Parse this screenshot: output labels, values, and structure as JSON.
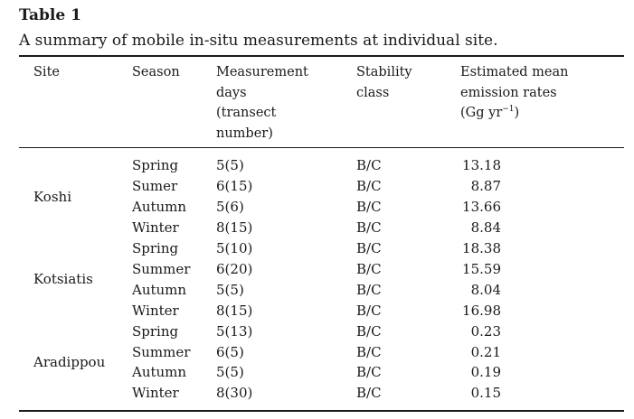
{
  "table_label": "Table 1",
  "caption": "A summary of mobile in-situ measurements at individual site.",
  "headers": {
    "site": "Site",
    "season": "Season",
    "days": "Measurement\ndays\n(transect\nnumber)",
    "stability": "Stability\nclass",
    "emission_main": "Estimated mean\nemission rates\n(Gg yr",
    "emission_sup": "−1",
    "emission_tail": ")"
  },
  "sites": [
    "Koshi",
    "Kotsiatis",
    "Aradippou"
  ],
  "rows": [
    {
      "season": "Spring",
      "days": "5(5)",
      "stability": "B/C",
      "emission": "13.18"
    },
    {
      "season": "Sumer",
      "days": "6(15)",
      "stability": "B/C",
      "emission": "8.87"
    },
    {
      "season": "Autumn",
      "days": "5(6)",
      "stability": "B/C",
      "emission": "13.66"
    },
    {
      "season": "Winter",
      "days": "8(15)",
      "stability": "B/C",
      "emission": "8.84"
    },
    {
      "season": "Spring",
      "days": "5(10)",
      "stability": "B/C",
      "emission": "18.38"
    },
    {
      "season": "Summer",
      "days": "6(20)",
      "stability": "B/C",
      "emission": "15.59"
    },
    {
      "season": "Autumn",
      "days": "5(5)",
      "stability": "B/C",
      "emission": "8.04"
    },
    {
      "season": "Winter",
      "days": "8(15)",
      "stability": "B/C",
      "emission": "16.98"
    },
    {
      "season": "Spring",
      "days": "5(13)",
      "stability": "B/C",
      "emission": "0.23"
    },
    {
      "season": "Summer",
      "days": "6(5)",
      "stability": "B/C",
      "emission": "0.21"
    },
    {
      "season": "Autumn",
      "days": "5(5)",
      "stability": "B/C",
      "emission": "0.19"
    },
    {
      "season": "Winter",
      "days": "8(30)",
      "stability": "B/C",
      "emission": "0.15"
    }
  ]
}
